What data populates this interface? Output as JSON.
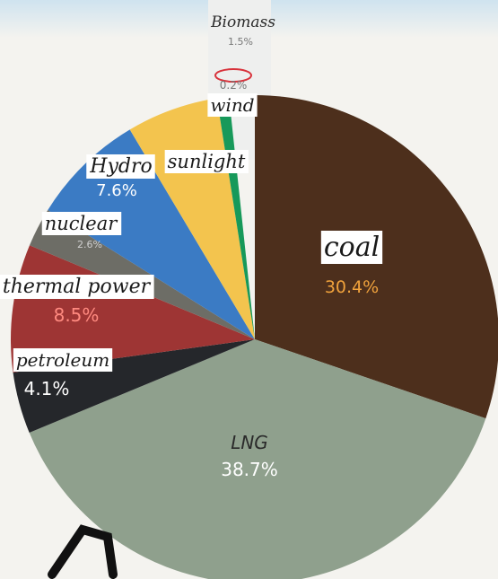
{
  "chart_data": {
    "type": "pie",
    "title": "",
    "slices": [
      {
        "label": "coal",
        "value": 30.4,
        "value_label": "30.4%",
        "color": "#4d2f1c",
        "value_color": "#f0a23c"
      },
      {
        "label": "LNG",
        "value": 38.7,
        "value_label": "38.7%",
        "color": "#8fa08d",
        "value_color": "#ffffff"
      },
      {
        "label": "petroleum",
        "value": 4.1,
        "value_label": "4.1%",
        "color": "#25272b",
        "value_color": "#ffffff"
      },
      {
        "label": "thermal power",
        "value": 8.5,
        "value_label": "8.5%",
        "color": "#9e3534",
        "value_color": "#ff8a80"
      },
      {
        "label": "nuclear",
        "value": 2.6,
        "value_label": "2.6%",
        "color": "#6d6d66",
        "value_color": "#cfcfcf"
      },
      {
        "label": "Hydro",
        "value": 7.6,
        "value_label": "7.6%",
        "color": "#3b7bc4",
        "value_color": "#ffffff"
      },
      {
        "label": "sunlight",
        "value": 6.1,
        "value_label": "",
        "color": "#f3c44e",
        "value_color": "#ffffff"
      },
      {
        "label": "wind",
        "value": 0.8,
        "value_label": "",
        "color": "#17995a",
        "value_color": "#ffffff"
      },
      {
        "label": "",
        "value": 0.2,
        "value_label": "0.2%",
        "color": "#ffffff",
        "value_color": "#777777"
      },
      {
        "label": "Biomass",
        "value": 1.5,
        "value_label": "1.5%",
        "color": "#ffffff",
        "value_color": "#777777"
      }
    ],
    "start_label": "coal",
    "direction": "clockwise",
    "legend": "none"
  }
}
